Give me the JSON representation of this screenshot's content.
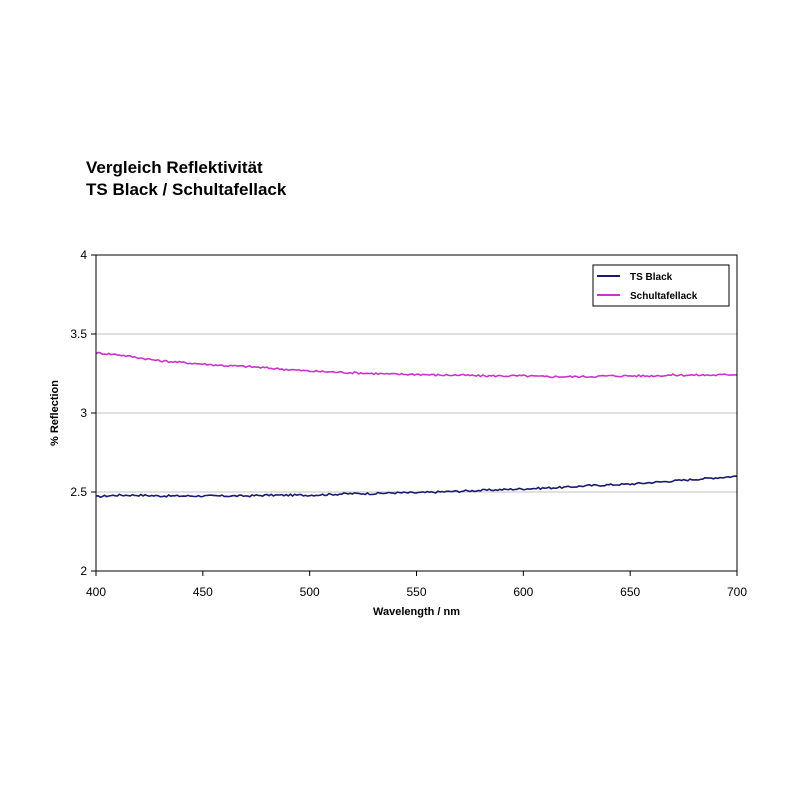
{
  "chart_data": {
    "type": "line",
    "title": [
      "Vergleich Reflektivität",
      "TS Black / Schultafellack"
    ],
    "xlabel": "Wavelength / nm",
    "ylabel": "% Reflection",
    "xlim": [
      400,
      700
    ],
    "ylim": [
      2,
      4
    ],
    "xticks": [
      400,
      450,
      500,
      550,
      600,
      650,
      700
    ],
    "yticks": [
      2,
      2.5,
      3,
      3.5,
      4
    ],
    "grid": true,
    "legend_position": "top-right",
    "series": [
      {
        "name": "TS Black",
        "color": "#1a1a6e",
        "x": [
          400,
          410,
          420,
          430,
          440,
          450,
          460,
          470,
          480,
          490,
          500,
          510,
          520,
          530,
          540,
          550,
          560,
          570,
          580,
          590,
          600,
          610,
          620,
          630,
          640,
          650,
          660,
          670,
          680,
          690,
          700
        ],
        "y": [
          2.47,
          2.48,
          2.48,
          2.475,
          2.475,
          2.475,
          2.475,
          2.475,
          2.48,
          2.48,
          2.48,
          2.485,
          2.49,
          2.49,
          2.495,
          2.495,
          2.5,
          2.505,
          2.51,
          2.515,
          2.52,
          2.525,
          2.53,
          2.54,
          2.545,
          2.55,
          2.56,
          2.57,
          2.58,
          2.59,
          2.6
        ]
      },
      {
        "name": "Schultafellack",
        "color": "#cc33cc",
        "x": [
          400,
          410,
          420,
          430,
          440,
          450,
          460,
          470,
          480,
          490,
          500,
          510,
          520,
          530,
          540,
          550,
          560,
          570,
          580,
          590,
          600,
          610,
          620,
          630,
          640,
          650,
          660,
          670,
          680,
          690,
          700
        ],
        "y": [
          3.38,
          3.37,
          3.35,
          3.33,
          3.32,
          3.31,
          3.3,
          3.295,
          3.285,
          3.275,
          3.265,
          3.26,
          3.255,
          3.25,
          3.245,
          3.245,
          3.24,
          3.24,
          3.235,
          3.235,
          3.235,
          3.23,
          3.23,
          3.23,
          3.235,
          3.235,
          3.235,
          3.24,
          3.24,
          3.24,
          3.245
        ]
      }
    ]
  },
  "style": {
    "plot_border": "#000000",
    "grid_color": "#c0c0c0"
  }
}
